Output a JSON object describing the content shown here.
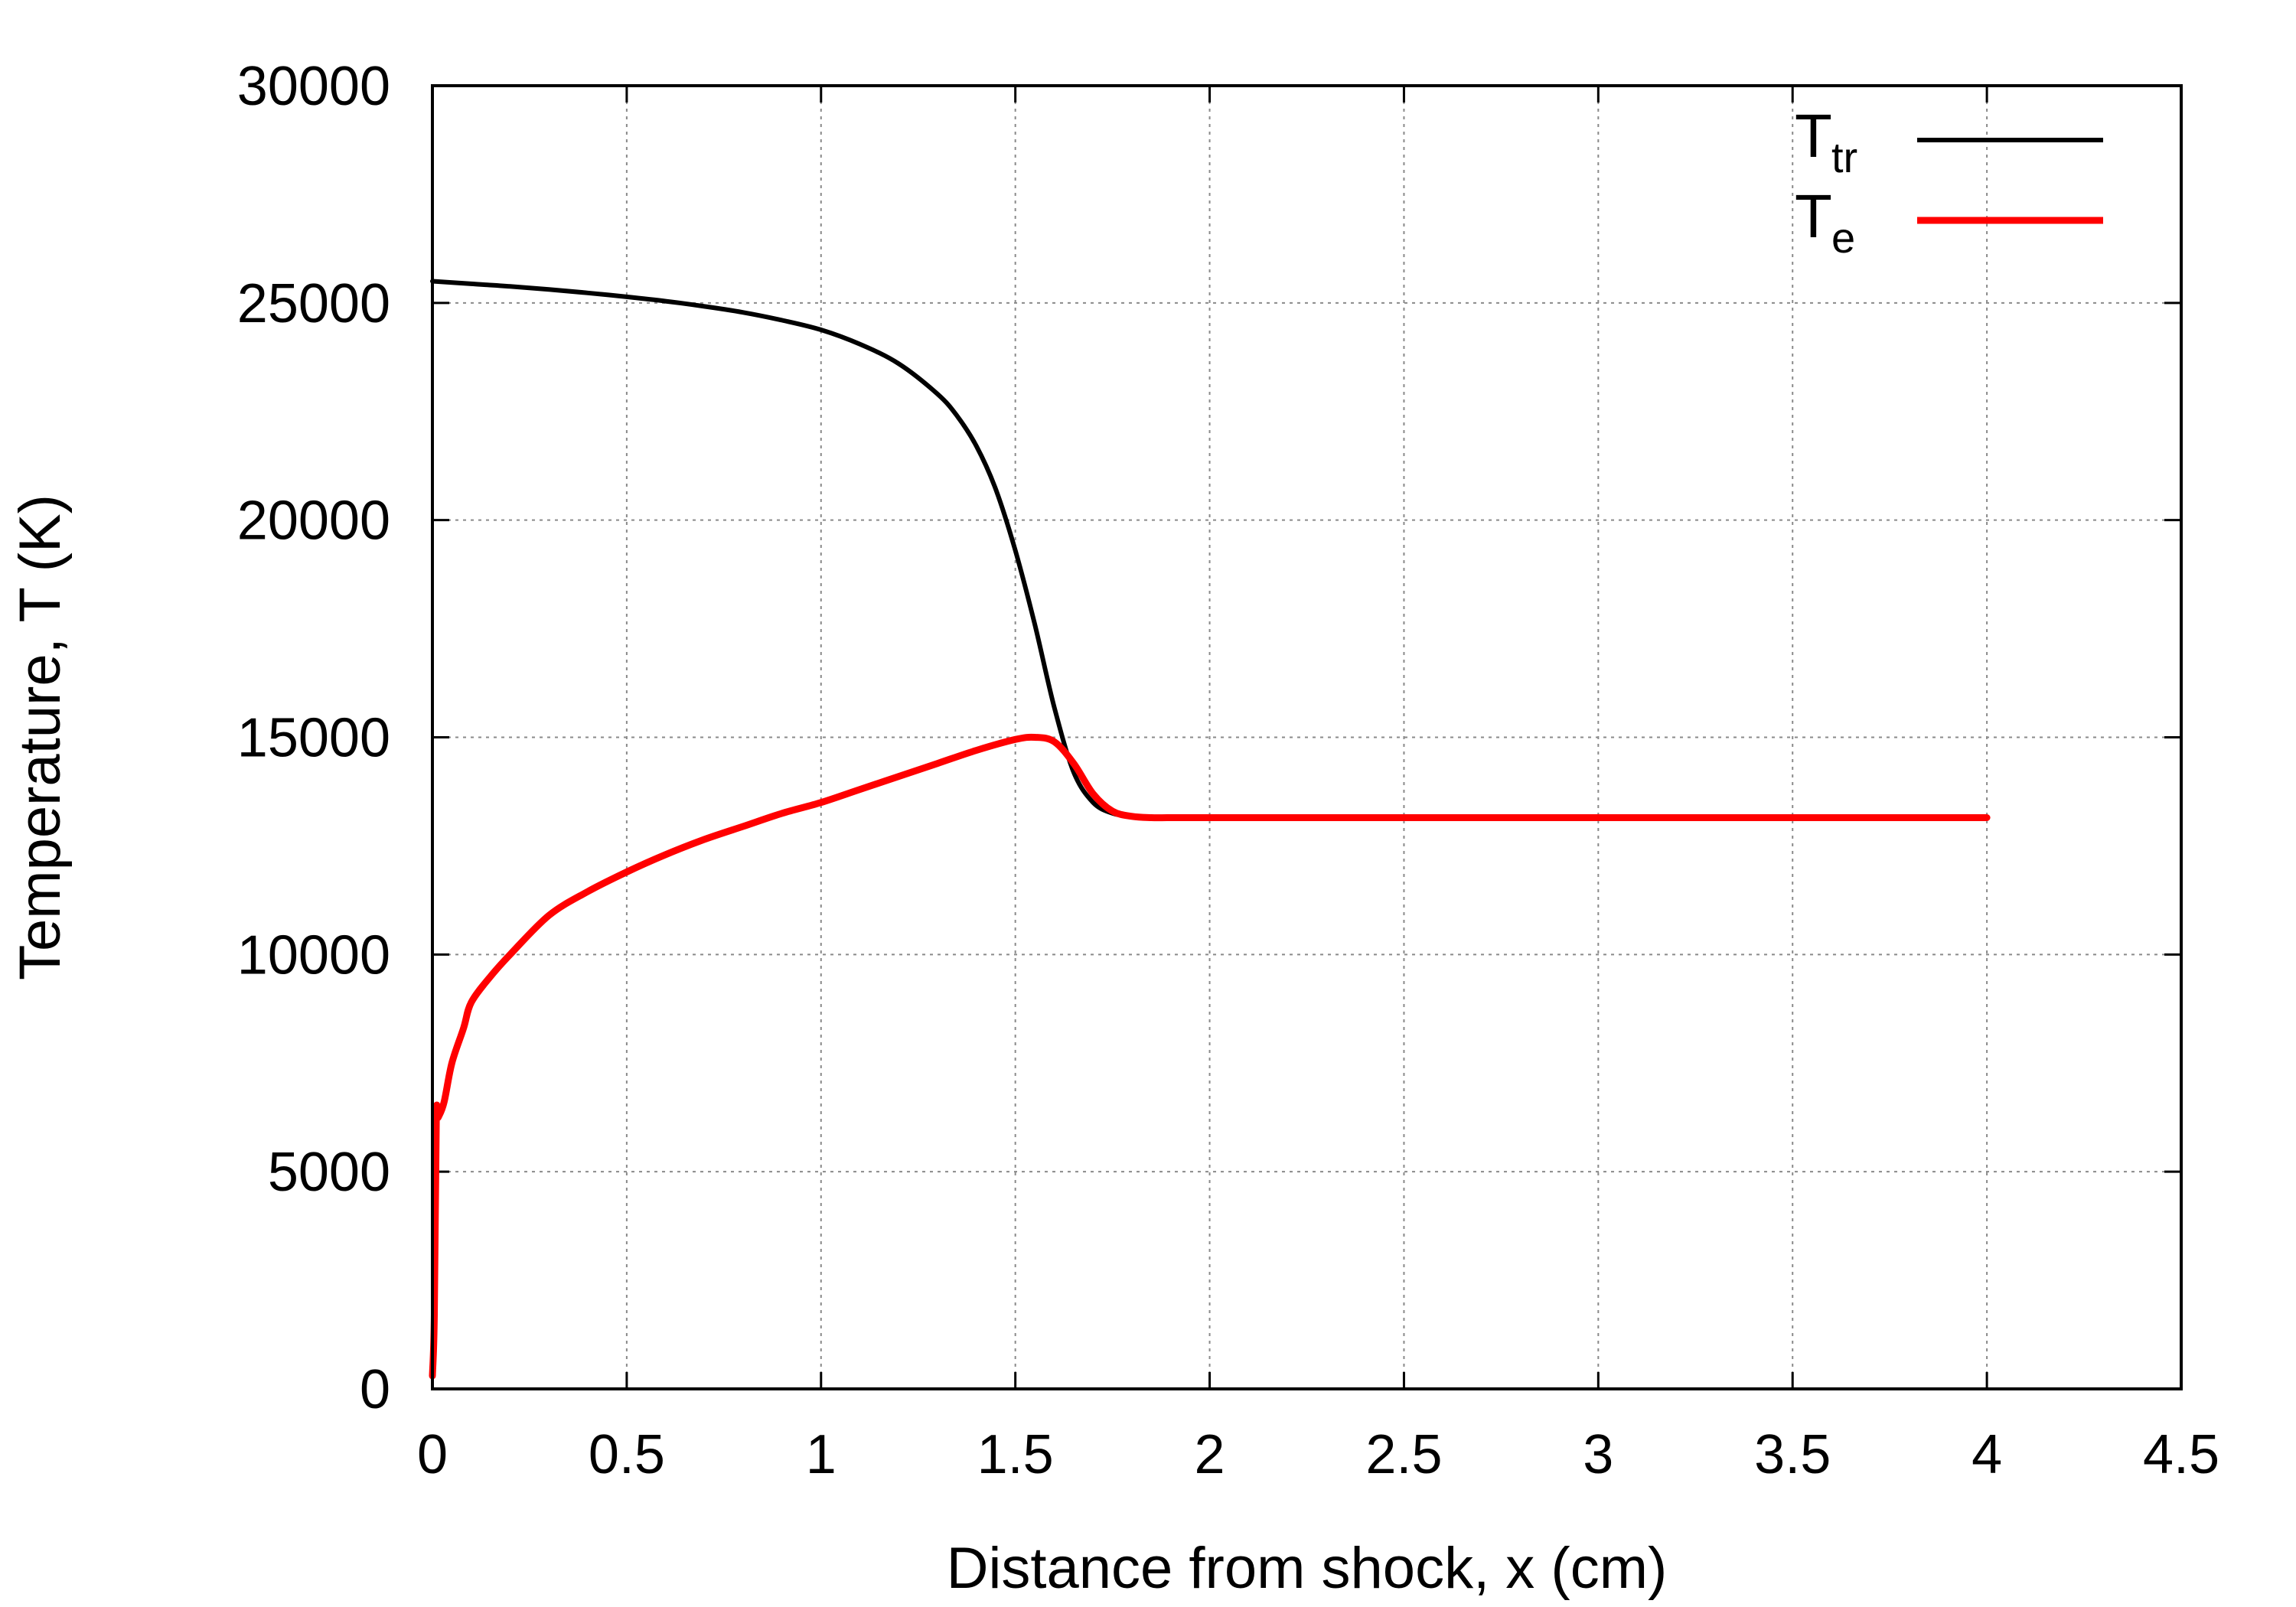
{
  "chart_data": {
    "type": "line",
    "xlabel": "Distance from shock, x (cm)",
    "ylabel": "Temperature, T (K)",
    "xlim": [
      0,
      4.5
    ],
    "ylim": [
      0,
      30000
    ],
    "xticks": [
      0,
      0.5,
      1,
      1.5,
      2,
      2.5,
      3,
      3.5,
      4,
      4.5
    ],
    "xtick_labels": [
      "0",
      "0.5",
      "1",
      "1.5",
      "2",
      "2.5",
      "3",
      "3.5",
      "4",
      "4.5"
    ],
    "yticks": [
      0,
      5000,
      10000,
      15000,
      20000,
      25000,
      30000
    ],
    "ytick_labels": [
      "0",
      "5000",
      "10000",
      "15000",
      "20000",
      "25000",
      "30000"
    ],
    "grid": true,
    "legend_position": "top-right",
    "series": [
      {
        "name": "T_tr",
        "legend_main": "T",
        "legend_sub": "tr",
        "color": "#000000",
        "x": [
          0,
          0.1,
          0.2,
          0.3,
          0.4,
          0.5,
          0.6,
          0.7,
          0.8,
          0.9,
          1.0,
          1.1,
          1.2,
          1.3,
          1.35,
          1.4,
          1.45,
          1.5,
          1.55,
          1.6,
          1.65,
          1.7,
          1.75,
          1.8,
          1.85,
          1.9,
          2.0,
          2.5,
          3.0,
          3.5,
          4.0
        ],
        "y": [
          25500,
          25440,
          25380,
          25310,
          25230,
          25140,
          25040,
          24920,
          24780,
          24600,
          24380,
          24050,
          23600,
          22900,
          22400,
          21700,
          20700,
          19300,
          17600,
          15700,
          14200,
          13500,
          13250,
          13180,
          13160,
          13150,
          13150,
          13150,
          13150,
          13150,
          13150
        ]
      },
      {
        "name": "T_e",
        "legend_main": "T",
        "legend_sub": "e",
        "color": "#ff0000",
        "x": [
          0,
          0.005,
          0.01,
          0.015,
          0.03,
          0.05,
          0.08,
          0.1,
          0.15,
          0.2,
          0.3,
          0.4,
          0.5,
          0.6,
          0.7,
          0.8,
          0.9,
          1.0,
          1.1,
          1.2,
          1.3,
          1.4,
          1.5,
          1.55,
          1.6,
          1.65,
          1.7,
          1.75,
          1.8,
          1.85,
          1.9,
          2.0,
          2.5,
          3.0,
          3.5,
          4.0
        ],
        "y": [
          300,
          1700,
          6200,
          6250,
          6600,
          7500,
          8300,
          8900,
          9500,
          10000,
          10900,
          11450,
          11900,
          12300,
          12650,
          12950,
          13250,
          13500,
          13800,
          14100,
          14400,
          14700,
          14950,
          15000,
          14900,
          14400,
          13700,
          13300,
          13180,
          13150,
          13150,
          13150,
          13150,
          13150,
          13150,
          13150
        ]
      }
    ]
  }
}
